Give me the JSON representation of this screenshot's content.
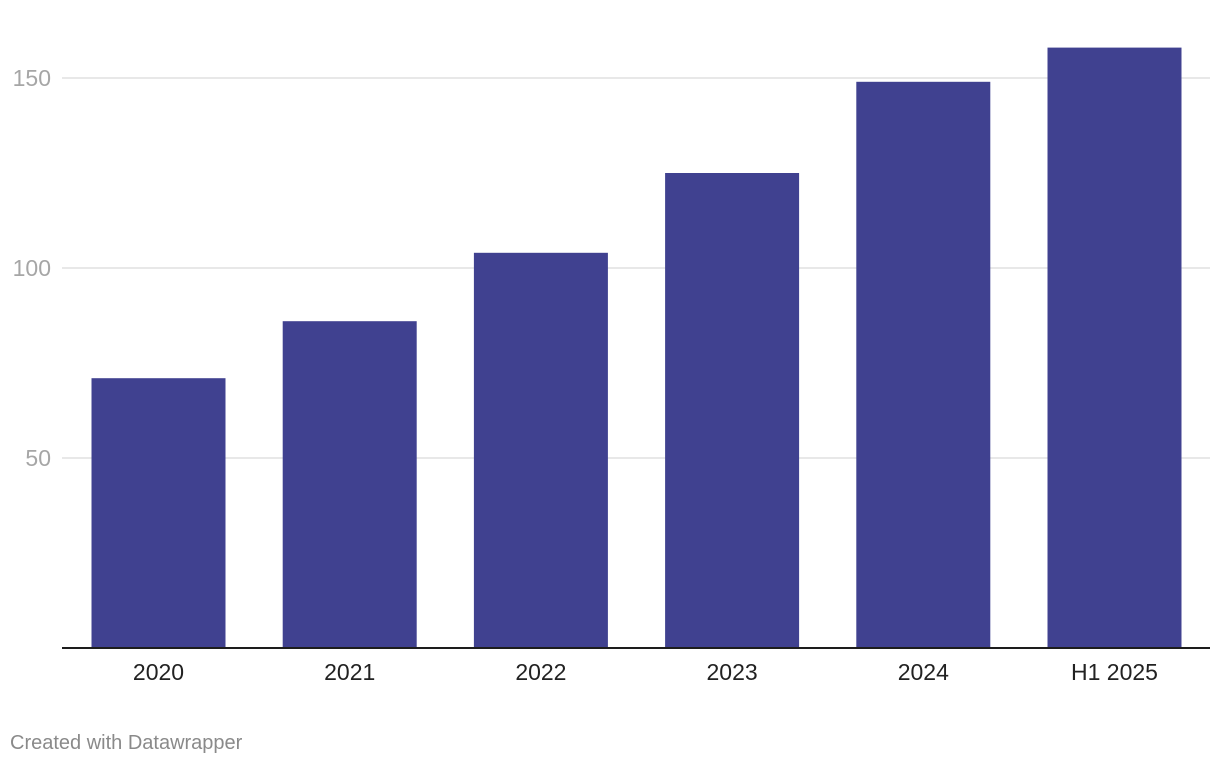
{
  "chart_data": {
    "type": "bar",
    "categories": [
      "2020",
      "2021",
      "2022",
      "2023",
      "2024",
      "H1 2025"
    ],
    "values": [
      71,
      86,
      104,
      125,
      149,
      158
    ],
    "ylim": [
      0,
      160
    ],
    "yticks": [
      50,
      100,
      150
    ],
    "grid": true,
    "legend": "none",
    "colors": {
      "bar": "#404190",
      "grid": "#e1e1e1",
      "baseline": "#1d1d1d",
      "ytick_text": "#a6a6a6",
      "xtick_text": "#222222"
    }
  },
  "footer": {
    "credit": "Created with Datawrapper"
  }
}
